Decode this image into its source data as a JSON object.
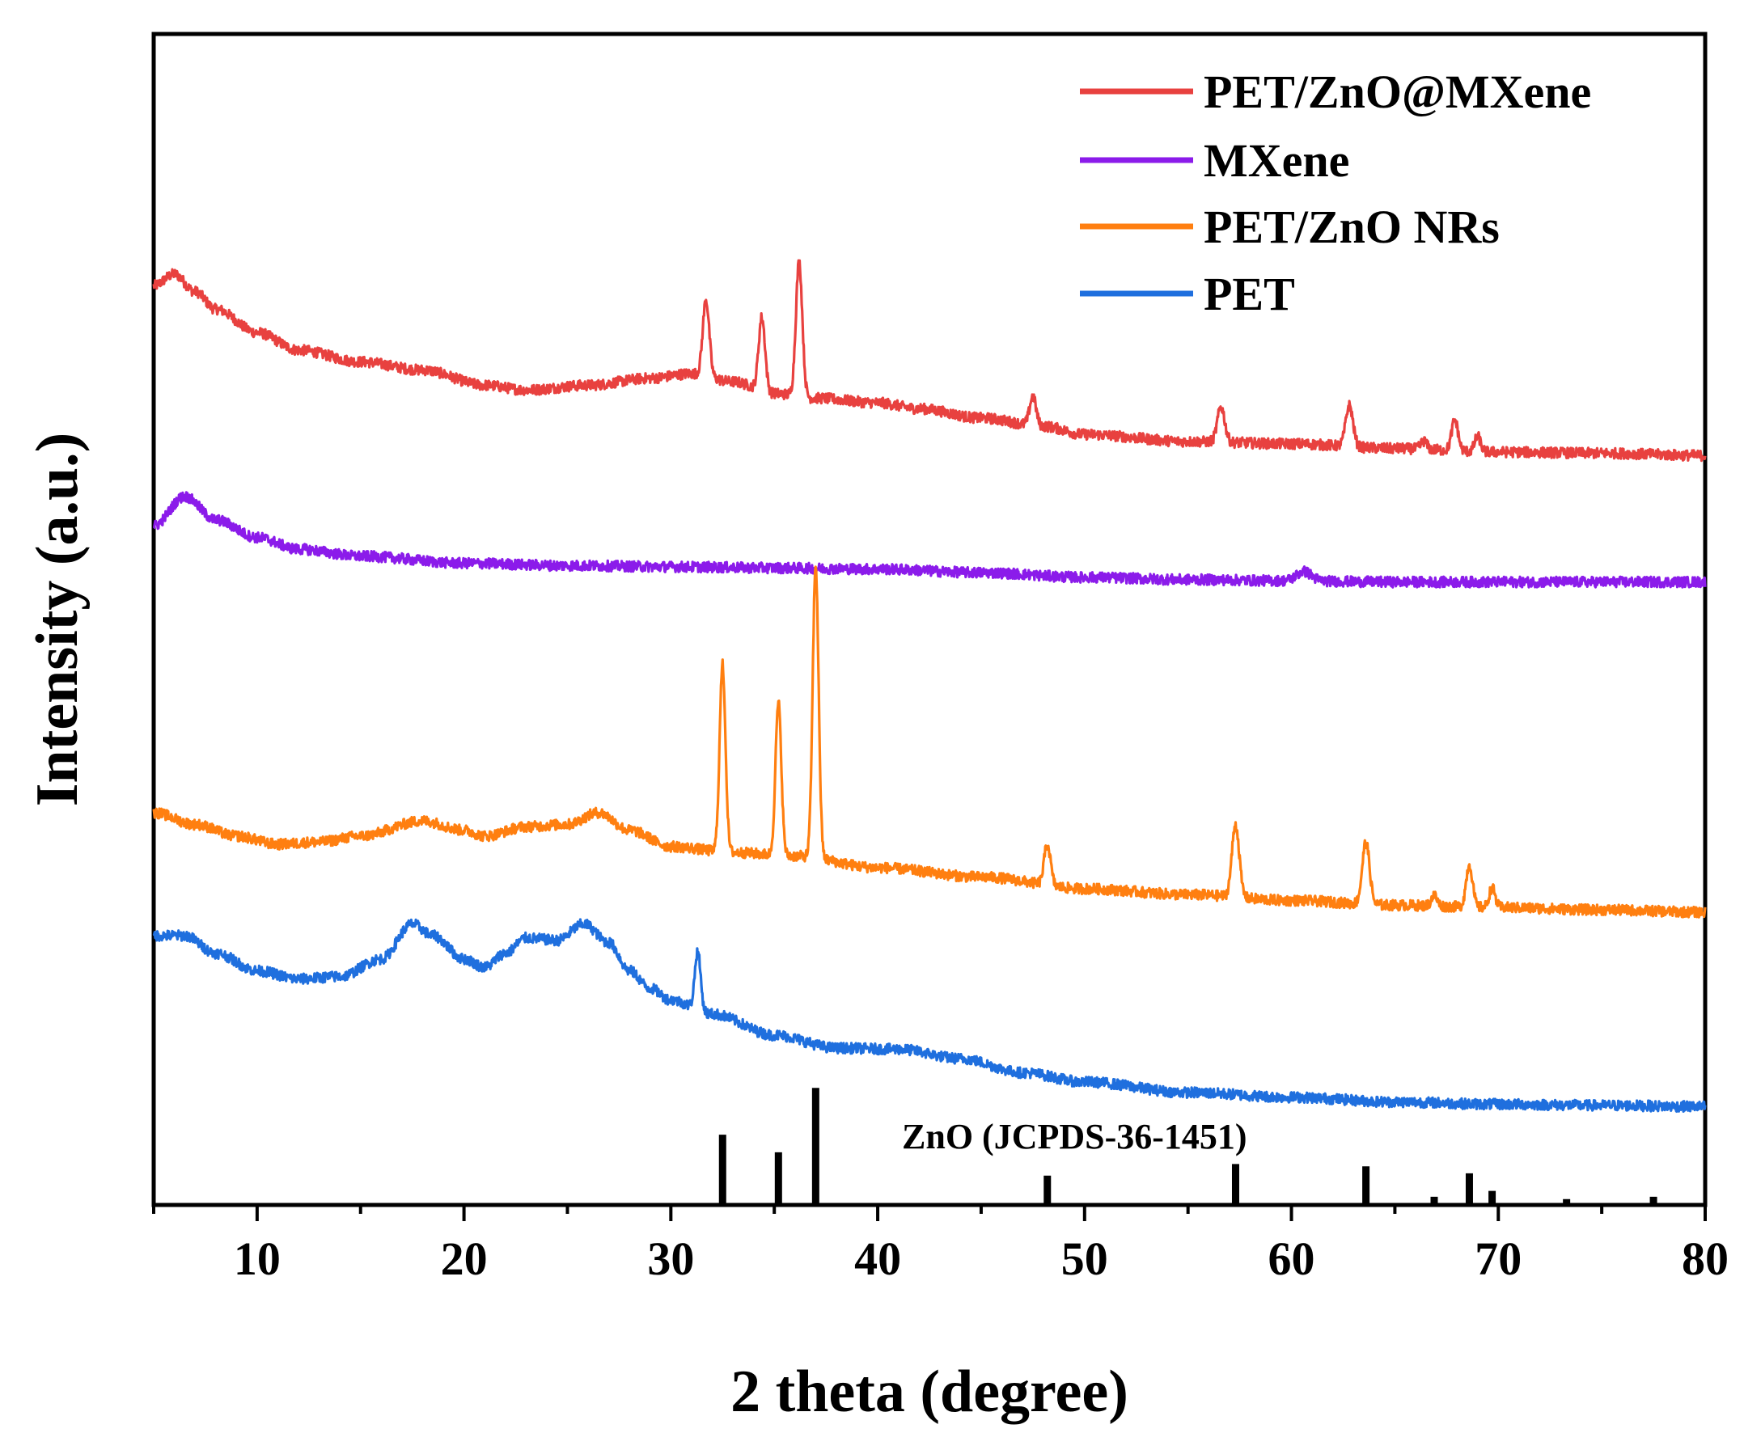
{
  "chart_data": {
    "type": "line",
    "title": "",
    "xlabel": "2 theta (degree)",
    "ylabel": "Intensity (a.u.)",
    "xlim": [
      5,
      80
    ],
    "ylim": [
      0,
      100
    ],
    "xticks": [
      10,
      20,
      30,
      40,
      50,
      60,
      70,
      80
    ],
    "yticks": [],
    "grid": false,
    "legend_position": "top-right",
    "series": [
      {
        "name": "PET/ZnO@MXene",
        "color": "#e8413f",
        "background": [
          [
            5,
            78.5
          ],
          [
            6,
            79.5
          ],
          [
            7,
            78
          ],
          [
            8,
            76.5
          ],
          [
            10,
            74.5
          ],
          [
            12,
            73
          ],
          [
            15,
            72
          ],
          [
            18,
            71.3
          ],
          [
            21,
            70
          ],
          [
            23,
            69.6
          ],
          [
            26,
            70
          ],
          [
            29,
            70.6
          ],
          [
            31,
            71
          ],
          [
            33,
            70.3
          ],
          [
            35,
            69.3
          ],
          [
            37,
            68.9
          ],
          [
            40,
            68.5
          ],
          [
            42,
            68
          ],
          [
            45,
            67.2
          ],
          [
            48,
            66.5
          ],
          [
            50,
            65.8
          ],
          [
            55,
            65.2
          ],
          [
            60,
            65
          ],
          [
            65,
            64.6
          ],
          [
            70,
            64.3
          ],
          [
            75,
            64.2
          ],
          [
            80,
            64
          ]
        ],
        "peaks": [
          {
            "x": 31.7,
            "h": 6.5,
            "w": 0.22
          },
          {
            "x": 34.4,
            "h": 6.3,
            "w": 0.22
          },
          {
            "x": 36.2,
            "h": 11.5,
            "w": 0.22
          },
          {
            "x": 47.5,
            "h": 2.5,
            "w": 0.22
          },
          {
            "x": 56.6,
            "h": 3,
            "w": 0.25
          },
          {
            "x": 62.8,
            "h": 3.5,
            "w": 0.25
          },
          {
            "x": 66.4,
            "h": 0.7,
            "w": 0.2
          },
          {
            "x": 67.9,
            "h": 2.6,
            "w": 0.22
          },
          {
            "x": 69.0,
            "h": 1.3,
            "w": 0.2
          }
        ]
      },
      {
        "name": "MXene",
        "color": "#8b1bea",
        "background": [
          [
            5,
            58
          ],
          [
            6.5,
            60.5
          ],
          [
            8,
            58.5
          ],
          [
            10,
            57
          ],
          [
            12,
            56
          ],
          [
            15,
            55.4
          ],
          [
            20,
            54.8
          ],
          [
            25,
            54.6
          ],
          [
            30,
            54.5
          ],
          [
            35,
            54.4
          ],
          [
            40,
            54.3
          ],
          [
            45,
            54
          ],
          [
            50,
            53.6
          ],
          [
            55,
            53.4
          ],
          [
            60,
            53.3
          ],
          [
            65,
            53.2
          ],
          [
            70,
            53.2
          ],
          [
            80,
            53.2
          ]
        ],
        "peaks": [
          {
            "x": 60.6,
            "h": 0.8,
            "w": 0.5
          }
        ]
      },
      {
        "name": "PET/ZnO NRs",
        "color": "#ff7f10",
        "background": [
          [
            5,
            33.5
          ],
          [
            7,
            32.5
          ],
          [
            9,
            31.5
          ],
          [
            11,
            30.8
          ],
          [
            13,
            31
          ],
          [
            15,
            31.5
          ],
          [
            18,
            32.8
          ],
          [
            20,
            32
          ],
          [
            21,
            31.5
          ],
          [
            23,
            32.3
          ],
          [
            25,
            32.5
          ],
          [
            26.5,
            33.5
          ],
          [
            28,
            32
          ],
          [
            30,
            30.6
          ],
          [
            33,
            30.1
          ],
          [
            36,
            29.8
          ],
          [
            40,
            28.8
          ],
          [
            45,
            28
          ],
          [
            50,
            27
          ],
          [
            55,
            26.5
          ],
          [
            60,
            26
          ],
          [
            65,
            25.6
          ],
          [
            70,
            25.4
          ],
          [
            75,
            25.2
          ],
          [
            80,
            25
          ]
        ],
        "peaks": [
          {
            "x": 32.5,
            "h": 16,
            "w": 0.2
          },
          {
            "x": 35.2,
            "h": 13,
            "w": 0.2
          },
          {
            "x": 37.0,
            "h": 25,
            "w": 0.2
          },
          {
            "x": 48.2,
            "h": 3.5,
            "w": 0.22
          },
          {
            "x": 57.3,
            "h": 6.2,
            "w": 0.25
          },
          {
            "x": 63.6,
            "h": 5.3,
            "w": 0.25
          },
          {
            "x": 66.9,
            "h": 0.9,
            "w": 0.2
          },
          {
            "x": 68.6,
            "h": 3.6,
            "w": 0.22
          },
          {
            "x": 69.7,
            "h": 1.7,
            "w": 0.2
          }
        ]
      },
      {
        "name": "PET",
        "color": "#1f6fde",
        "background": [
          [
            5,
            23
          ],
          [
            6.5,
            23
          ],
          [
            8,
            21.5
          ],
          [
            10,
            20
          ],
          [
            12,
            19.3
          ],
          [
            14,
            19.5
          ],
          [
            16,
            21
          ],
          [
            17.5,
            24
          ],
          [
            18.5,
            23
          ],
          [
            20,
            21
          ],
          [
            21,
            20.3
          ],
          [
            22,
            21.5
          ],
          [
            23,
            22.8
          ],
          [
            24.5,
            22.6
          ],
          [
            25.8,
            24
          ],
          [
            27,
            22.4
          ],
          [
            28,
            20
          ],
          [
            29,
            18.5
          ],
          [
            30,
            17.5
          ],
          [
            32,
            16.3
          ],
          [
            35,
            14.5
          ],
          [
            38,
            13.4
          ],
          [
            41,
            13.3
          ],
          [
            44,
            12.5
          ],
          [
            47,
            11.3
          ],
          [
            50,
            10.5
          ],
          [
            55,
            9.6
          ],
          [
            60,
            9.2
          ],
          [
            65,
            8.8
          ],
          [
            70,
            8.6
          ],
          [
            75,
            8.5
          ],
          [
            80,
            8.4
          ]
        ],
        "peaks": [
          {
            "x": 31.3,
            "h": 5,
            "w": 0.2
          }
        ]
      }
    ],
    "reference": {
      "name": "ZnO (JCPDS-36-1451)",
      "color": "#000000",
      "sticks": [
        {
          "x": 32.5,
          "h": 6
        },
        {
          "x": 35.2,
          "h": 4.5
        },
        {
          "x": 37.0,
          "h": 10
        },
        {
          "x": 48.2,
          "h": 2.5
        },
        {
          "x": 57.3,
          "h": 3.5
        },
        {
          "x": 63.6,
          "h": 3.3
        },
        {
          "x": 66.9,
          "h": 0.7
        },
        {
          "x": 68.6,
          "h": 2.7
        },
        {
          "x": 69.7,
          "h": 1.2
        },
        {
          "x": 73.3,
          "h": 0.5
        },
        {
          "x": 77.5,
          "h": 0.7
        }
      ]
    }
  }
}
